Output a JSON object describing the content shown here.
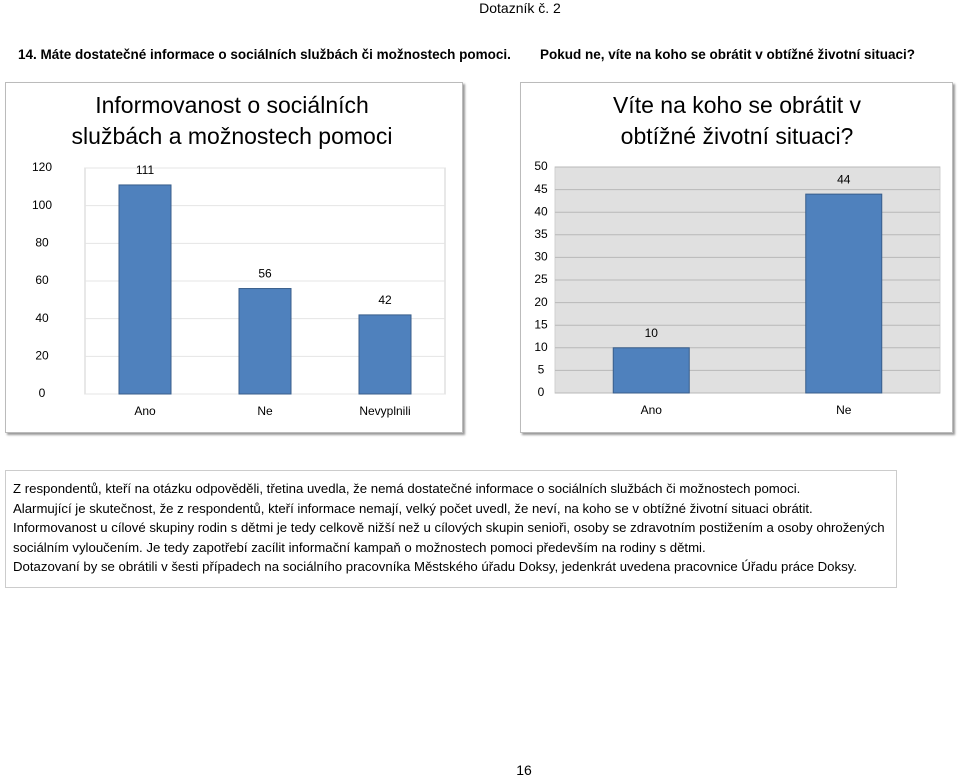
{
  "header": {
    "title": "Dotazník č. 2"
  },
  "questions": [
    "14. Máte dostatečné informace o sociálních službách či možnostech pomoci.",
    "Pokud ne, víte na koho se obrátit v obtížné životní situaci?"
  ],
  "chart_data": [
    {
      "type": "bar",
      "title": "Informovanost o sociálních službách a možnostech pomoci",
      "categories": [
        "Ano",
        "Ne",
        "Nevyplnili"
      ],
      "values": [
        111,
        56,
        42
      ],
      "color": "#4f81bd",
      "ylim": [
        0,
        120
      ],
      "yticks": [
        0,
        20,
        40,
        60,
        80,
        100,
        120
      ],
      "grid": true,
      "plot_color": "#ffffff"
    },
    {
      "type": "bar",
      "title": "Víte na koho se obrátit v obtížné životní situaci?",
      "categories": [
        "Ano",
        "Ne"
      ],
      "values": [
        10,
        44
      ],
      "color": "#4f81bd",
      "ylim": [
        0,
        50
      ],
      "yticks": [
        0,
        5,
        10,
        15,
        20,
        25,
        30,
        35,
        40,
        45,
        50
      ],
      "grid": true,
      "plot_color": "#e0e0e0"
    }
  ],
  "text": {
    "paragraphs": [
      "Z respondentů, kteří na otázku odpověděli, třetina uvedla, že nemá dostatečné informace o sociálních službách či možnostech pomoci.",
      "Alarmující je skutečnost, že z respondentů, kteří informace nemají, velký počet uvedl, že neví, na koho se v obtížné životní situaci obrátit.",
      "Informovanost u cílové skupiny rodin s dětmi je tedy celkově nižší než u cílových skupin senioři, osoby se zdravotním postižením a osoby ohrožených sociálním vyloučením. Je tedy zapotřebí zacílit informační kampaň o možnostech pomoci především na rodiny s dětmi.",
      "Dotazovaní by se obrátili v šesti případech na sociálního pracovníka Městského úřadu Doksy, jedenkrát uvedena pracovnice Úřadu práce Doksy."
    ]
  },
  "page_number": "16"
}
